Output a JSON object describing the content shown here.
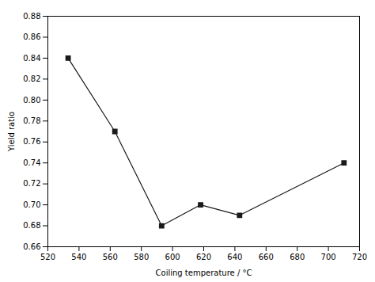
{
  "chart_data": {
    "type": "line",
    "x": [
      533,
      563,
      593,
      618,
      643,
      710
    ],
    "y": [
      0.84,
      0.77,
      0.68,
      0.7,
      0.69,
      0.74
    ],
    "xlabel": "Coiling temperature / °C",
    "ylabel": "Yield ratio",
    "xlim": [
      520,
      720
    ],
    "ylim": [
      0.66,
      0.88
    ],
    "xticks": [
      520,
      540,
      560,
      580,
      600,
      620,
      640,
      660,
      680,
      700,
      720
    ],
    "yticks": [
      0.66,
      0.68,
      {
        "value": 0.7,
        "label": "0.70"
      },
      0.72,
      0.74,
      0.76,
      0.78,
      {
        "value": 0.8,
        "label": "0.80"
      },
      0.82,
      0.84,
      0.86,
      0.88
    ],
    "color": "#1a1a1a",
    "marker": "square",
    "grid": false
  }
}
